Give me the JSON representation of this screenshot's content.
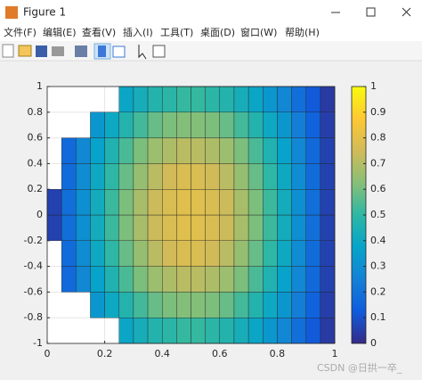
{
  "window": {
    "title": "Figure 1",
    "menu": [
      "文件(F)",
      "编辑(E)",
      "查看(V)",
      "插入(I)",
      "工具(T)",
      "桌面(D)",
      "窗口(W)",
      "帮助(H)"
    ]
  },
  "watermark": "CSDN @日拱一卒_",
  "chart_data": {
    "type": "heatmap",
    "x": [
      0.025,
      0.075,
      0.125,
      0.175,
      0.225,
      0.275,
      0.325,
      0.375,
      0.425,
      0.475,
      0.525,
      0.575,
      0.625,
      0.675,
      0.725,
      0.775,
      0.825,
      0.875,
      0.925,
      0.975
    ],
    "y": [
      -0.9,
      -0.7,
      -0.5,
      -0.3,
      -0.1,
      0.1,
      0.3,
      0.5,
      0.7,
      0.9
    ],
    "z": [
      [
        null,
        null,
        null,
        null,
        null,
        0.39,
        0.43,
        0.47,
        0.49,
        0.51,
        0.51,
        0.49,
        0.47,
        0.43,
        0.39,
        0.33,
        0.27,
        0.19,
        0.12,
        0.04
      ],
      [
        null,
        null,
        null,
        0.33,
        0.4,
        0.47,
        0.53,
        0.58,
        0.61,
        0.62,
        0.62,
        0.61,
        0.58,
        0.53,
        0.47,
        0.4,
        0.33,
        0.24,
        0.15,
        0.05
      ],
      [
        null,
        0.17,
        0.27,
        0.37,
        0.46,
        0.54,
        0.61,
        0.66,
        0.69,
        0.71,
        0.71,
        0.69,
        0.66,
        0.61,
        0.54,
        0.46,
        0.37,
        0.27,
        0.17,
        0.06
      ],
      [
        null,
        0.18,
        0.29,
        0.4,
        0.5,
        0.58,
        0.65,
        0.71,
        0.75,
        0.77,
        0.77,
        0.75,
        0.71,
        0.65,
        0.58,
        0.5,
        0.4,
        0.29,
        0.18,
        0.06
      ],
      [
        0.06,
        0.19,
        0.3,
        0.42,
        0.52,
        0.61,
        0.68,
        0.74,
        0.77,
        0.79,
        0.79,
        0.77,
        0.74,
        0.68,
        0.61,
        0.52,
        0.42,
        0.3,
        0.19,
        0.06
      ],
      [
        0.06,
        0.19,
        0.3,
        0.42,
        0.52,
        0.61,
        0.68,
        0.74,
        0.77,
        0.79,
        0.79,
        0.77,
        0.74,
        0.68,
        0.61,
        0.52,
        0.42,
        0.3,
        0.19,
        0.06
      ],
      [
        null,
        0.18,
        0.29,
        0.4,
        0.5,
        0.58,
        0.65,
        0.71,
        0.75,
        0.77,
        0.77,
        0.75,
        0.71,
        0.65,
        0.58,
        0.5,
        0.4,
        0.29,
        0.18,
        0.06
      ],
      [
        null,
        0.17,
        0.27,
        0.37,
        0.46,
        0.54,
        0.61,
        0.66,
        0.69,
        0.71,
        0.71,
        0.69,
        0.66,
        0.61,
        0.54,
        0.46,
        0.37,
        0.27,
        0.17,
        0.06
      ],
      [
        null,
        null,
        null,
        0.33,
        0.4,
        0.47,
        0.53,
        0.58,
        0.61,
        0.62,
        0.62,
        0.61,
        0.58,
        0.53,
        0.47,
        0.4,
        0.33,
        0.24,
        0.15,
        0.05
      ],
      [
        null,
        null,
        null,
        null,
        null,
        0.39,
        0.43,
        0.47,
        0.49,
        0.51,
        0.51,
        0.49,
        0.47,
        0.43,
        0.39,
        0.33,
        0.27,
        0.19,
        0.12,
        0.04
      ]
    ],
    "xlim": [
      0,
      1
    ],
    "ylim": [
      -1,
      1
    ],
    "xticks": [
      0,
      0.2,
      0.4,
      0.6,
      0.8,
      1
    ],
    "yticks": [
      -1,
      -0.8,
      -0.6,
      -0.4,
      -0.2,
      0,
      0.2,
      0.4,
      0.6,
      0.8,
      1
    ],
    "clim": [
      0,
      1
    ],
    "cticks": [
      0,
      0.1,
      0.2,
      0.3,
      0.4,
      0.5,
      0.6,
      0.7,
      0.8,
      0.9,
      1
    ],
    "colormap": [
      "#352a87",
      "#0f5cdd",
      "#1481d6",
      "#06a4ca",
      "#2eb7a4",
      "#87bf77",
      "#d1bb59",
      "#fec832",
      "#f9fb0e"
    ],
    "grid": true,
    "colorbar": true
  }
}
